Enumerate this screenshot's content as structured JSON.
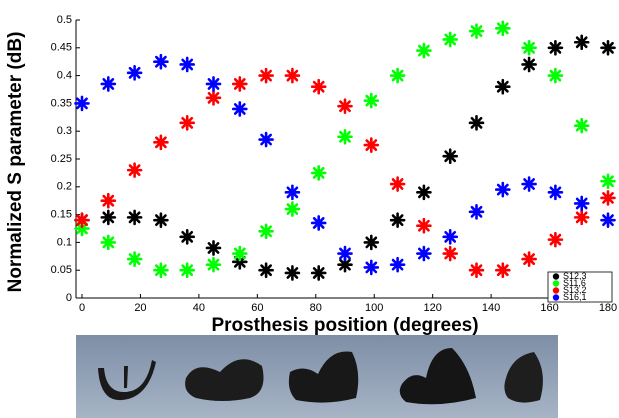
{
  "chart_data": {
    "type": "scatter",
    "x_label": "Prosthesis position (degrees)",
    "y_label": "Normalized S parameter (dB)",
    "x": [
      0,
      9,
      18,
      27,
      36,
      45,
      54,
      63,
      72,
      81,
      90,
      99,
      108,
      117,
      126,
      135,
      144,
      153,
      162,
      171,
      180
    ],
    "series": [
      {
        "name": "S12,3",
        "color": "#000000",
        "values": [
          0.14,
          0.145,
          0.145,
          0.14,
          0.11,
          0.09,
          0.065,
          0.05,
          0.045,
          0.045,
          0.06,
          0.1,
          0.14,
          0.19,
          0.255,
          0.315,
          0.38,
          0.42,
          0.45,
          0.46,
          0.45
        ]
      },
      {
        "name": "S11,6",
        "color": "#00ff00",
        "values": [
          0.125,
          0.1,
          0.07,
          0.05,
          0.05,
          0.06,
          0.08,
          0.12,
          0.16,
          0.225,
          0.29,
          0.355,
          0.4,
          0.445,
          0.465,
          0.48,
          0.485,
          0.45,
          0.4,
          0.31,
          0.21
        ]
      },
      {
        "name": "S13,2",
        "color": "#ff0000",
        "values": [
          0.14,
          0.175,
          0.23,
          0.28,
          0.315,
          0.36,
          0.385,
          0.4,
          0.4,
          0.38,
          0.345,
          0.275,
          0.205,
          0.13,
          0.08,
          0.05,
          0.05,
          0.07,
          0.105,
          0.145,
          0.18
        ]
      },
      {
        "name": "S16,1",
        "color": "#0000ff",
        "values": [
          0.35,
          0.385,
          0.405,
          0.425,
          0.42,
          0.385,
          0.34,
          0.285,
          0.19,
          0.135,
          0.08,
          0.055,
          0.06,
          0.08,
          0.11,
          0.155,
          0.195,
          0.205,
          0.19,
          0.17,
          0.14
        ]
      }
    ],
    "xlim": [
      0,
      180
    ],
    "xticks": [
      0,
      20,
      40,
      60,
      80,
      100,
      120,
      140,
      160,
      180
    ],
    "ylim": [
      0,
      0.5
    ],
    "yticks": [
      0,
      0.05,
      0.1,
      0.15,
      0.2,
      0.25,
      0.3,
      0.35,
      0.4,
      0.45,
      0.5
    ],
    "grid": false,
    "legend": "lower right"
  }
}
